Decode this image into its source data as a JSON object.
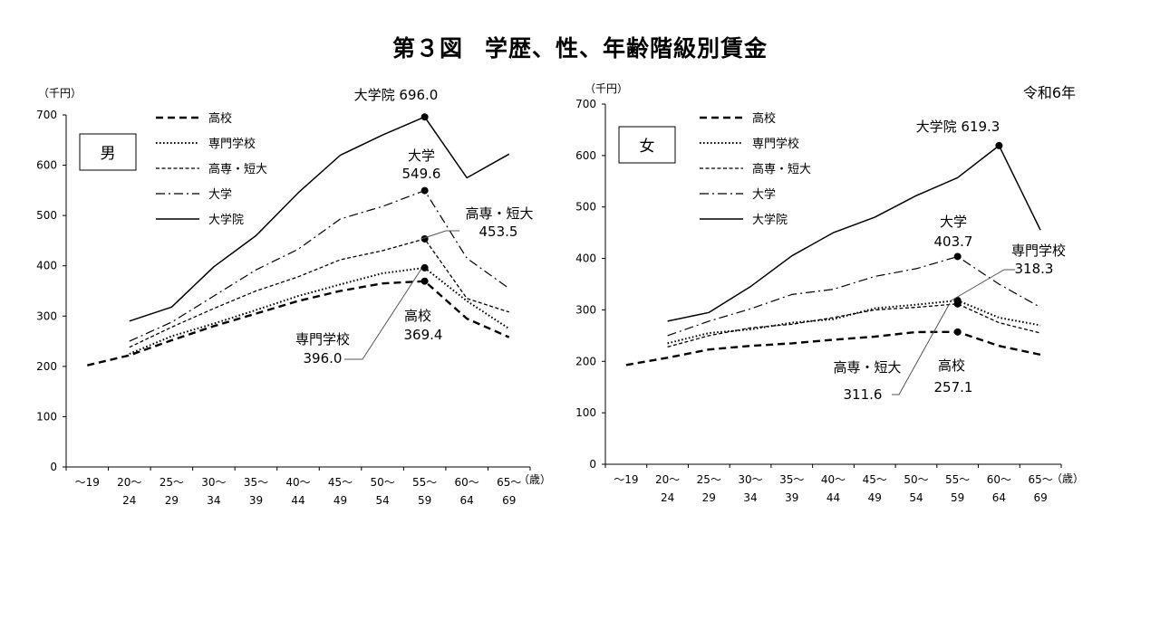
{
  "page": {
    "title_fig": "第３図",
    "title_text": "学歴、性、年齢階級別賃金",
    "note": "令和6年"
  },
  "chart_data": [
    {
      "type": "line",
      "panel_label": "男",
      "unit_label": "（千円）",
      "x_unit_label": "（歳）",
      "ylim": [
        0,
        700
      ],
      "yticks": [
        0,
        100,
        200,
        300,
        400,
        500,
        600,
        700
      ],
      "categories": [
        [
          "～19",
          ""
        ],
        [
          "20～",
          "24"
        ],
        [
          "25～",
          "29"
        ],
        [
          "30～",
          "34"
        ],
        [
          "35～",
          "39"
        ],
        [
          "40～",
          "44"
        ],
        [
          "45～",
          "49"
        ],
        [
          "50～",
          "54"
        ],
        [
          "55～",
          "59"
        ],
        [
          "60～",
          "64"
        ],
        [
          "65～",
          "69"
        ]
      ],
      "legend_position": "top-left",
      "series": [
        {
          "name": "高校",
          "style": "dash",
          "values": [
            202,
            222,
            252,
            280,
            305,
            330,
            350,
            365,
            369.4,
            295,
            258
          ]
        },
        {
          "name": "専門学校",
          "style": "dot",
          "values": [
            null,
            225,
            260,
            285,
            312,
            340,
            363,
            385,
            396.0,
            330,
            275
          ]
        },
        {
          "name": "高専・短大",
          "style": "shortdash",
          "values": [
            null,
            238,
            278,
            315,
            350,
            378,
            412,
            430,
            453.5,
            335,
            308
          ]
        },
        {
          "name": "大学",
          "style": "dashdot",
          "values": [
            null,
            250,
            288,
            340,
            392,
            433,
            493,
            518,
            549.6,
            415,
            355
          ]
        },
        {
          "name": "大学院",
          "style": "solid",
          "values": [
            null,
            290,
            318,
            398,
            460,
            545,
            620,
            660,
            696.0,
            575,
            622
          ]
        }
      ],
      "annotations": [
        {
          "series": "大学院",
          "lines": [
            "大学院 696.0"
          ]
        },
        {
          "series": "大学",
          "lines": [
            "大学",
            "549.6"
          ]
        },
        {
          "series": "高専・短大",
          "lines": [
            "高専・短大",
            "453.5"
          ]
        },
        {
          "series": "高校",
          "lines": [
            "高校",
            "369.4"
          ]
        },
        {
          "series": "専門学校",
          "lines": [
            "専門学校",
            "396.0"
          ]
        }
      ]
    },
    {
      "type": "line",
      "panel_label": "女",
      "unit_label": "（千円）",
      "x_unit_label": "（歳）",
      "ylim": [
        0,
        700
      ],
      "yticks": [
        0,
        100,
        200,
        300,
        400,
        500,
        600,
        700
      ],
      "categories": [
        [
          "～19",
          ""
        ],
        [
          "20～",
          "24"
        ],
        [
          "25～",
          "29"
        ],
        [
          "30～",
          "34"
        ],
        [
          "35～",
          "39"
        ],
        [
          "40～",
          "44"
        ],
        [
          "45～",
          "49"
        ],
        [
          "50～",
          "54"
        ],
        [
          "55～",
          "59"
        ],
        [
          "60～",
          "64"
        ],
        [
          "65～",
          "69"
        ]
      ],
      "legend_position": "top-left",
      "series": [
        {
          "name": "高校",
          "style": "dash",
          "values": [
            193,
            207,
            223,
            230,
            235,
            242,
            248,
            257,
            257.1,
            230,
            213
          ]
        },
        {
          "name": "専門学校",
          "style": "dot",
          "values": [
            null,
            235,
            255,
            262,
            275,
            282,
            303,
            310,
            318.3,
            285,
            270
          ]
        },
        {
          "name": "高専・短大",
          "style": "shortdash",
          "values": [
            null,
            228,
            250,
            265,
            272,
            285,
            300,
            305,
            311.6,
            275,
            255
          ]
        },
        {
          "name": "大学",
          "style": "dashdot",
          "values": [
            null,
            250,
            278,
            302,
            330,
            340,
            365,
            380,
            403.7,
            350,
            305
          ]
        },
        {
          "name": "大学院",
          "style": "solid",
          "values": [
            null,
            278,
            295,
            345,
            405,
            450,
            480,
            522,
            557,
            619.3,
            455
          ]
        }
      ],
      "annotations": [
        {
          "series": "大学院",
          "lines": [
            "大学院 619.3"
          ]
        },
        {
          "series": "大学",
          "lines": [
            "大学",
            "403.7"
          ]
        },
        {
          "series": "専門学校",
          "lines": [
            "専門学校",
            "318.3"
          ]
        },
        {
          "series": "高専・短大",
          "lines": [
            "高専・短大",
            "311.6"
          ]
        },
        {
          "series": "高校",
          "lines": [
            "高校",
            "257.1"
          ]
        }
      ]
    }
  ]
}
